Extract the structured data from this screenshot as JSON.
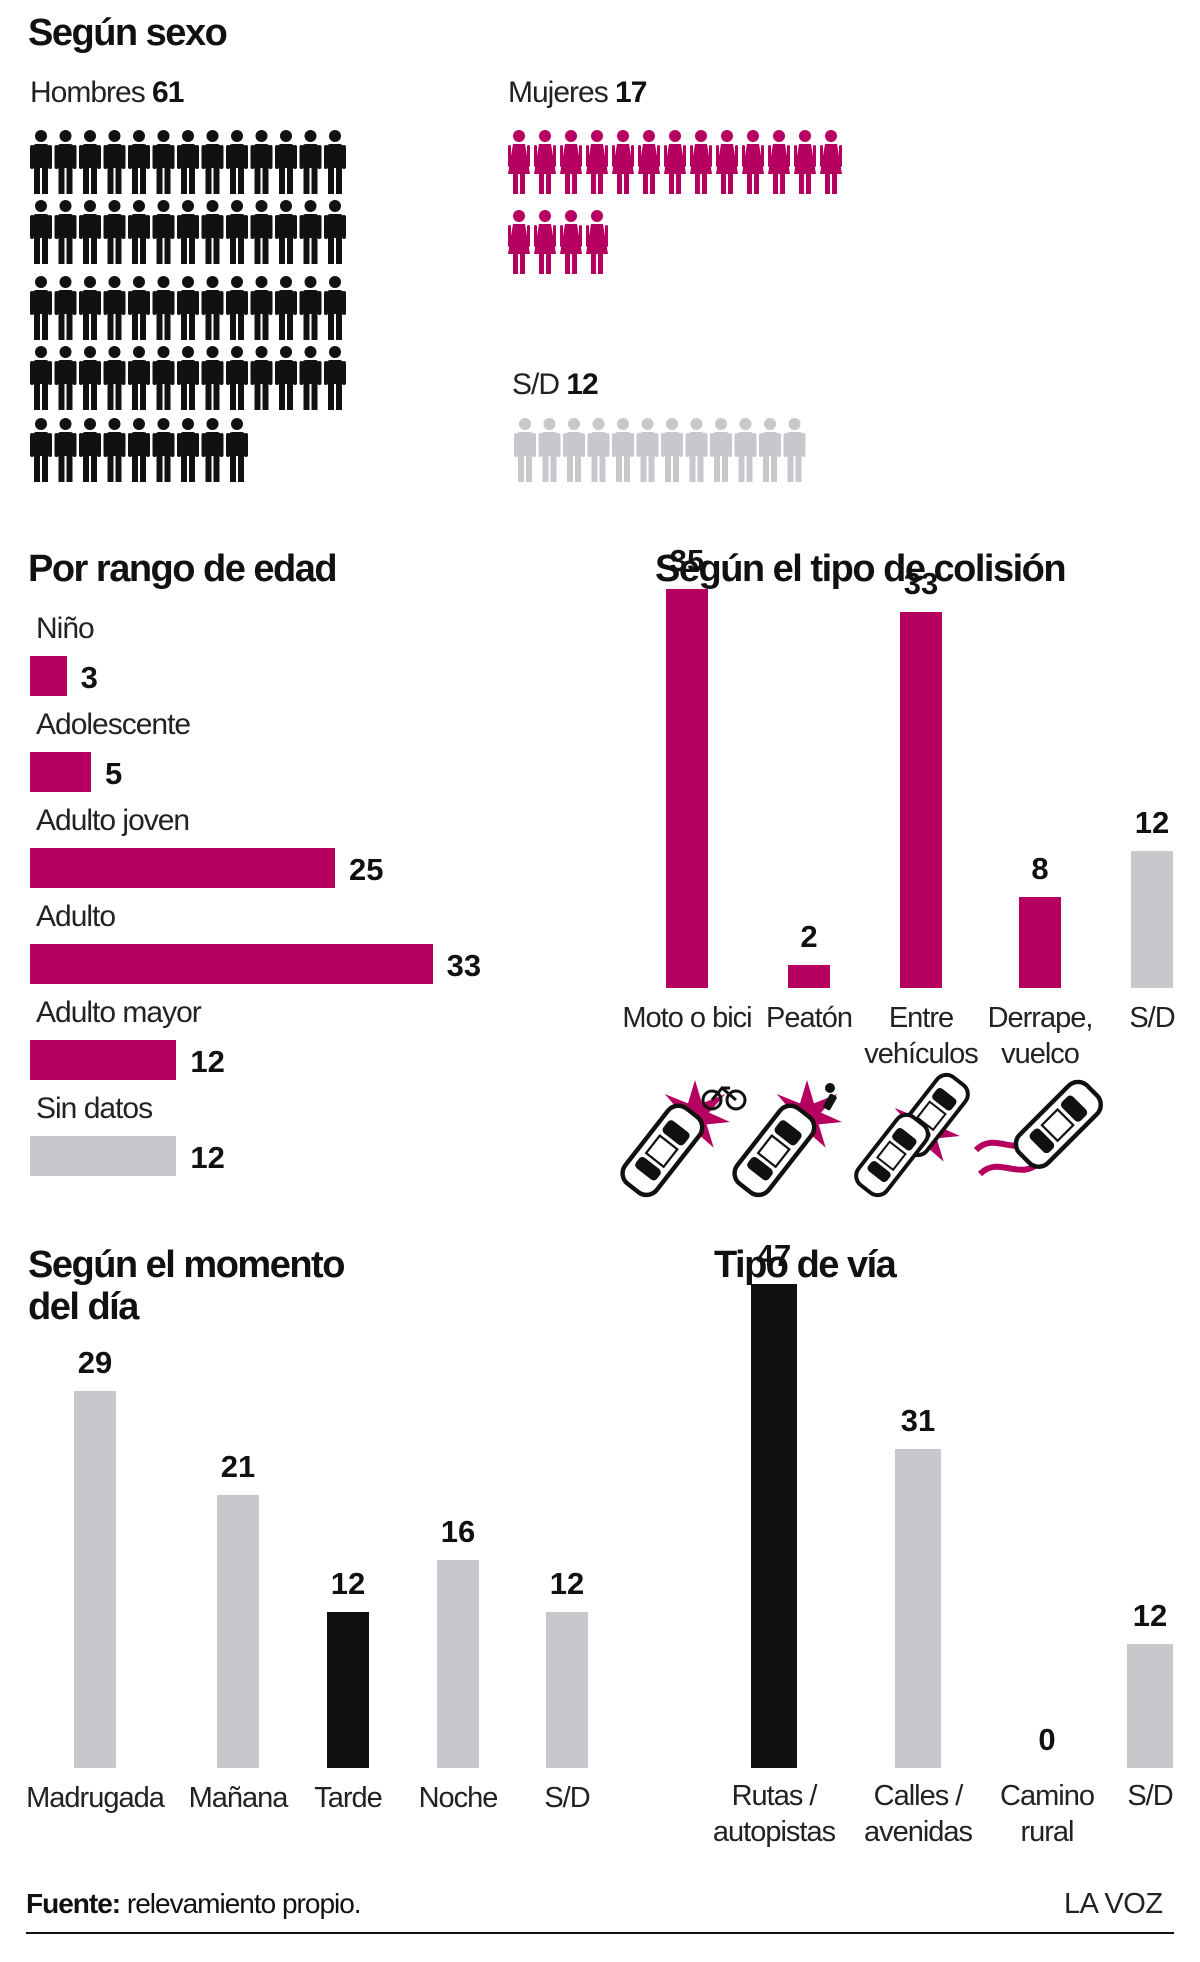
{
  "colors": {
    "magenta": "#B5005F",
    "black": "#111111",
    "gray": "#C8C8CC"
  },
  "sex": {
    "title": "Según sexo",
    "men": {
      "label": "Hombres",
      "value": "61"
    },
    "women": {
      "label": "Mujeres",
      "value": "17"
    },
    "sd": {
      "label": "S/D",
      "value": "12"
    }
  },
  "chart_data": [
    {
      "type": "bar",
      "orientation": "horizontal",
      "title": "Por rango de edad",
      "categories": [
        "Niño",
        "Adolescente",
        "Adulto joven",
        "Adulto",
        "Adulto mayor",
        "Sin datos"
      ],
      "values": [
        3,
        5,
        25,
        33,
        12,
        12
      ],
      "colors": [
        "magenta",
        "magenta",
        "magenta",
        "magenta",
        "magenta",
        "gray"
      ]
    },
    {
      "type": "bar",
      "title": "Según el tipo de colisión",
      "categories": [
        "Moto o bici",
        "Peatón",
        "Entre vehículos",
        "Derrape, vuelco",
        "S/D"
      ],
      "values": [
        35,
        2,
        33,
        8,
        12
      ],
      "colors": [
        "magenta",
        "magenta",
        "magenta",
        "magenta",
        "gray"
      ],
      "icons": [
        "car-bike-collision-icon",
        "car-pedestrian-collision-icon",
        "car-car-collision-icon",
        "car-skid-icon",
        ""
      ]
    },
    {
      "type": "bar",
      "title": "Según el momento del día",
      "categories": [
        "Madrugada",
        "Mañana",
        "Tarde",
        "Noche",
        "S/D"
      ],
      "values": [
        29,
        21,
        12,
        16,
        12
      ],
      "colors": [
        "gray",
        "gray",
        "black",
        "gray",
        "gray"
      ]
    },
    {
      "type": "bar",
      "title": "Tipo de vía",
      "categories": [
        "Rutas / autopistas",
        "Calles / avenidas",
        "Camino rural",
        "S/D"
      ],
      "values": [
        47,
        31,
        0,
        12
      ],
      "colors": [
        "black",
        "gray",
        "gray",
        "gray"
      ]
    }
  ],
  "footer": {
    "source_label": "Fuente:",
    "source_text": "relevamiento propio.",
    "brand": "LA VOZ"
  }
}
